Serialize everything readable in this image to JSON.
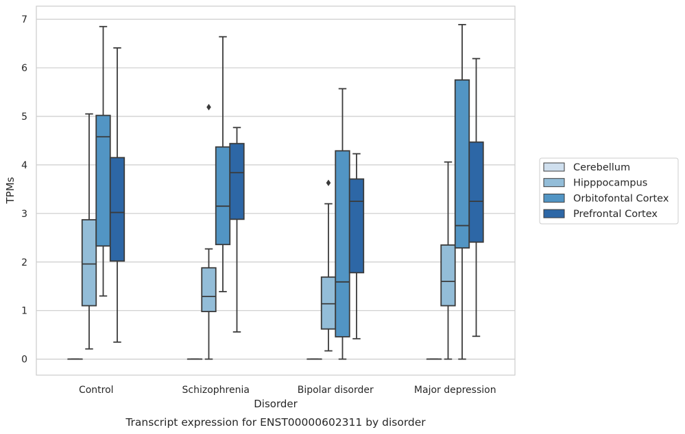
{
  "chart_data": {
    "type": "box",
    "caption": "Transcript expression for ENST00000602311 by disorder",
    "xlabel": "Disorder",
    "ylabel": "TPMs",
    "ylim": [
      -0.33,
      7.27
    ],
    "yticks": [
      0,
      1,
      2,
      3,
      4,
      5,
      6,
      7
    ],
    "grid": "horizontal",
    "legend_position": "right",
    "categories": [
      "Control",
      "Schizophrenia",
      "Bipolar disorder",
      "Major depression"
    ],
    "series": [
      {
        "name": "Cerebellum",
        "color": "#cfdfee",
        "boxes": [
          {
            "whisker_low": 0,
            "q1": 0,
            "median": 0,
            "q3": 0,
            "whisker_high": 0,
            "outliers": []
          },
          {
            "whisker_low": 0,
            "q1": 0,
            "median": 0,
            "q3": 0,
            "whisker_high": 0,
            "outliers": []
          },
          {
            "whisker_low": 0,
            "q1": 0,
            "median": 0,
            "q3": 0,
            "whisker_high": 0,
            "outliers": []
          },
          {
            "whisker_low": 0,
            "q1": 0,
            "median": 0,
            "q3": 0,
            "whisker_high": 0,
            "outliers": []
          }
        ]
      },
      {
        "name": "Hipppocampus",
        "color": "#93bdd8",
        "boxes": [
          {
            "whisker_low": 0.21,
            "q1": 1.1,
            "median": 1.96,
            "q3": 2.87,
            "whisker_high": 5.05,
            "outliers": []
          },
          {
            "whisker_low": 0.0,
            "q1": 0.98,
            "median": 1.29,
            "q3": 1.88,
            "whisker_high": 2.27,
            "outliers": [
              5.19
            ]
          },
          {
            "whisker_low": 0.17,
            "q1": 0.62,
            "median": 1.14,
            "q3": 1.69,
            "whisker_high": 3.2,
            "outliers": [
              3.63
            ]
          },
          {
            "whisker_low": 0.0,
            "q1": 1.1,
            "median": 1.6,
            "q3": 2.35,
            "whisker_high": 4.06,
            "outliers": []
          }
        ]
      },
      {
        "name": "Orbitofontal Cortex",
        "color": "#5295c4",
        "boxes": [
          {
            "whisker_low": 1.3,
            "q1": 2.33,
            "median": 4.58,
            "q3": 5.02,
            "whisker_high": 6.85,
            "outliers": []
          },
          {
            "whisker_low": 1.39,
            "q1": 2.36,
            "median": 3.15,
            "q3": 4.37,
            "whisker_high": 6.64,
            "outliers": []
          },
          {
            "whisker_low": 0.0,
            "q1": 0.46,
            "median": 1.59,
            "q3": 4.29,
            "whisker_high": 5.57,
            "outliers": []
          },
          {
            "whisker_low": 0.0,
            "q1": 2.29,
            "median": 2.75,
            "q3": 5.75,
            "whisker_high": 6.89,
            "outliers": []
          }
        ]
      },
      {
        "name": "Prefrontal Cortex",
        "color": "#2d67a6",
        "boxes": [
          {
            "whisker_low": 0.35,
            "q1": 2.02,
            "median": 3.02,
            "q3": 4.15,
            "whisker_high": 6.41,
            "outliers": []
          },
          {
            "whisker_low": 0.56,
            "q1": 2.88,
            "median": 3.84,
            "q3": 4.44,
            "whisker_high": 4.77,
            "outliers": []
          },
          {
            "whisker_low": 0.42,
            "q1": 1.78,
            "median": 3.25,
            "q3": 3.71,
            "whisker_high": 4.23,
            "outliers": []
          },
          {
            "whisker_low": 0.47,
            "q1": 2.41,
            "median": 3.25,
            "q3": 4.47,
            "whisker_high": 6.19,
            "outliers": []
          }
        ]
      }
    ]
  }
}
